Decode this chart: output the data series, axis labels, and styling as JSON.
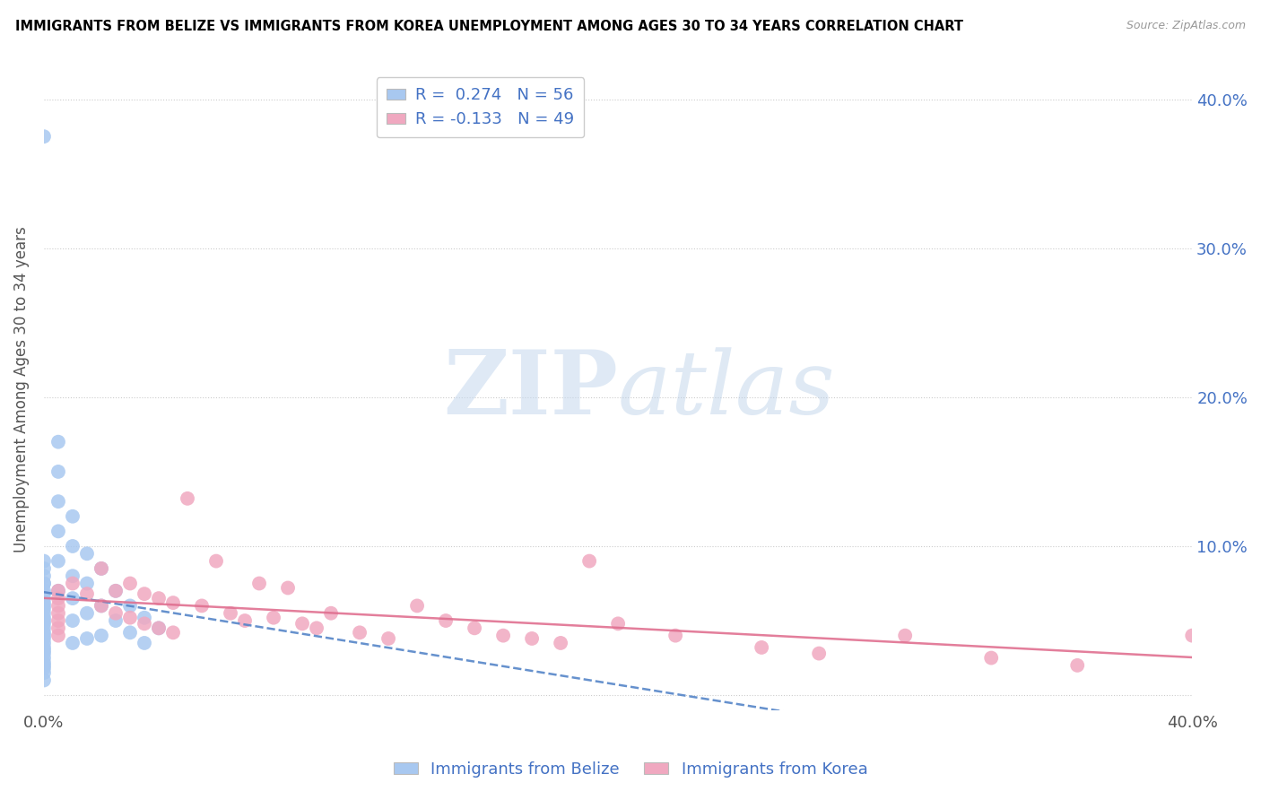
{
  "title": "IMMIGRANTS FROM BELIZE VS IMMIGRANTS FROM KOREA UNEMPLOYMENT AMONG AGES 30 TO 34 YEARS CORRELATION CHART",
  "source": "Source: ZipAtlas.com",
  "ylabel": "Unemployment Among Ages 30 to 34 years",
  "xlim": [
    0.0,
    0.4
  ],
  "ylim": [
    -0.01,
    0.42
  ],
  "belize_R": 0.274,
  "belize_N": 56,
  "korea_R": -0.133,
  "korea_N": 49,
  "belize_color": "#a8c8f0",
  "korea_color": "#f0a8c0",
  "belize_line_color": "#5585c8",
  "korea_line_color": "#e07090",
  "legend_label_belize": "Immigrants from Belize",
  "legend_label_korea": "Immigrants from Korea",
  "watermark_zip": "ZIP",
  "watermark_atlas": "atlas",
  "belize_x": [
    0.0,
    0.0,
    0.0,
    0.0,
    0.0,
    0.0,
    0.0,
    0.0,
    0.0,
    0.0,
    0.0,
    0.0,
    0.0,
    0.0,
    0.0,
    0.0,
    0.0,
    0.0,
    0.0,
    0.0,
    0.0,
    0.0,
    0.0,
    0.0,
    0.0,
    0.0,
    0.0,
    0.0,
    0.0,
    0.0,
    0.005,
    0.005,
    0.005,
    0.005,
    0.005,
    0.005,
    0.01,
    0.01,
    0.01,
    0.01,
    0.01,
    0.01,
    0.015,
    0.015,
    0.015,
    0.015,
    0.02,
    0.02,
    0.02,
    0.025,
    0.025,
    0.03,
    0.03,
    0.035,
    0.035,
    0.04
  ],
  "belize_y": [
    0.375,
    0.09,
    0.085,
    0.08,
    0.075,
    0.075,
    0.07,
    0.068,
    0.065,
    0.062,
    0.06,
    0.058,
    0.055,
    0.052,
    0.05,
    0.048,
    0.045,
    0.042,
    0.04,
    0.038,
    0.035,
    0.032,
    0.03,
    0.028,
    0.025,
    0.022,
    0.02,
    0.018,
    0.015,
    0.01,
    0.17,
    0.15,
    0.13,
    0.11,
    0.09,
    0.07,
    0.12,
    0.1,
    0.08,
    0.065,
    0.05,
    0.035,
    0.095,
    0.075,
    0.055,
    0.038,
    0.085,
    0.06,
    0.04,
    0.07,
    0.05,
    0.06,
    0.042,
    0.052,
    0.035,
    0.045
  ],
  "korea_x": [
    0.005,
    0.005,
    0.005,
    0.005,
    0.005,
    0.005,
    0.005,
    0.01,
    0.015,
    0.02,
    0.02,
    0.025,
    0.025,
    0.03,
    0.03,
    0.035,
    0.035,
    0.04,
    0.04,
    0.045,
    0.045,
    0.05,
    0.055,
    0.06,
    0.065,
    0.07,
    0.075,
    0.08,
    0.085,
    0.09,
    0.095,
    0.1,
    0.11,
    0.12,
    0.13,
    0.14,
    0.15,
    0.16,
    0.17,
    0.18,
    0.19,
    0.2,
    0.22,
    0.25,
    0.27,
    0.3,
    0.33,
    0.36,
    0.4
  ],
  "korea_y": [
    0.07,
    0.065,
    0.06,
    0.055,
    0.05,
    0.045,
    0.04,
    0.075,
    0.068,
    0.085,
    0.06,
    0.07,
    0.055,
    0.075,
    0.052,
    0.068,
    0.048,
    0.065,
    0.045,
    0.062,
    0.042,
    0.132,
    0.06,
    0.09,
    0.055,
    0.05,
    0.075,
    0.052,
    0.072,
    0.048,
    0.045,
    0.055,
    0.042,
    0.038,
    0.06,
    0.05,
    0.045,
    0.04,
    0.038,
    0.035,
    0.09,
    0.048,
    0.04,
    0.032,
    0.028,
    0.04,
    0.025,
    0.02,
    0.04
  ]
}
